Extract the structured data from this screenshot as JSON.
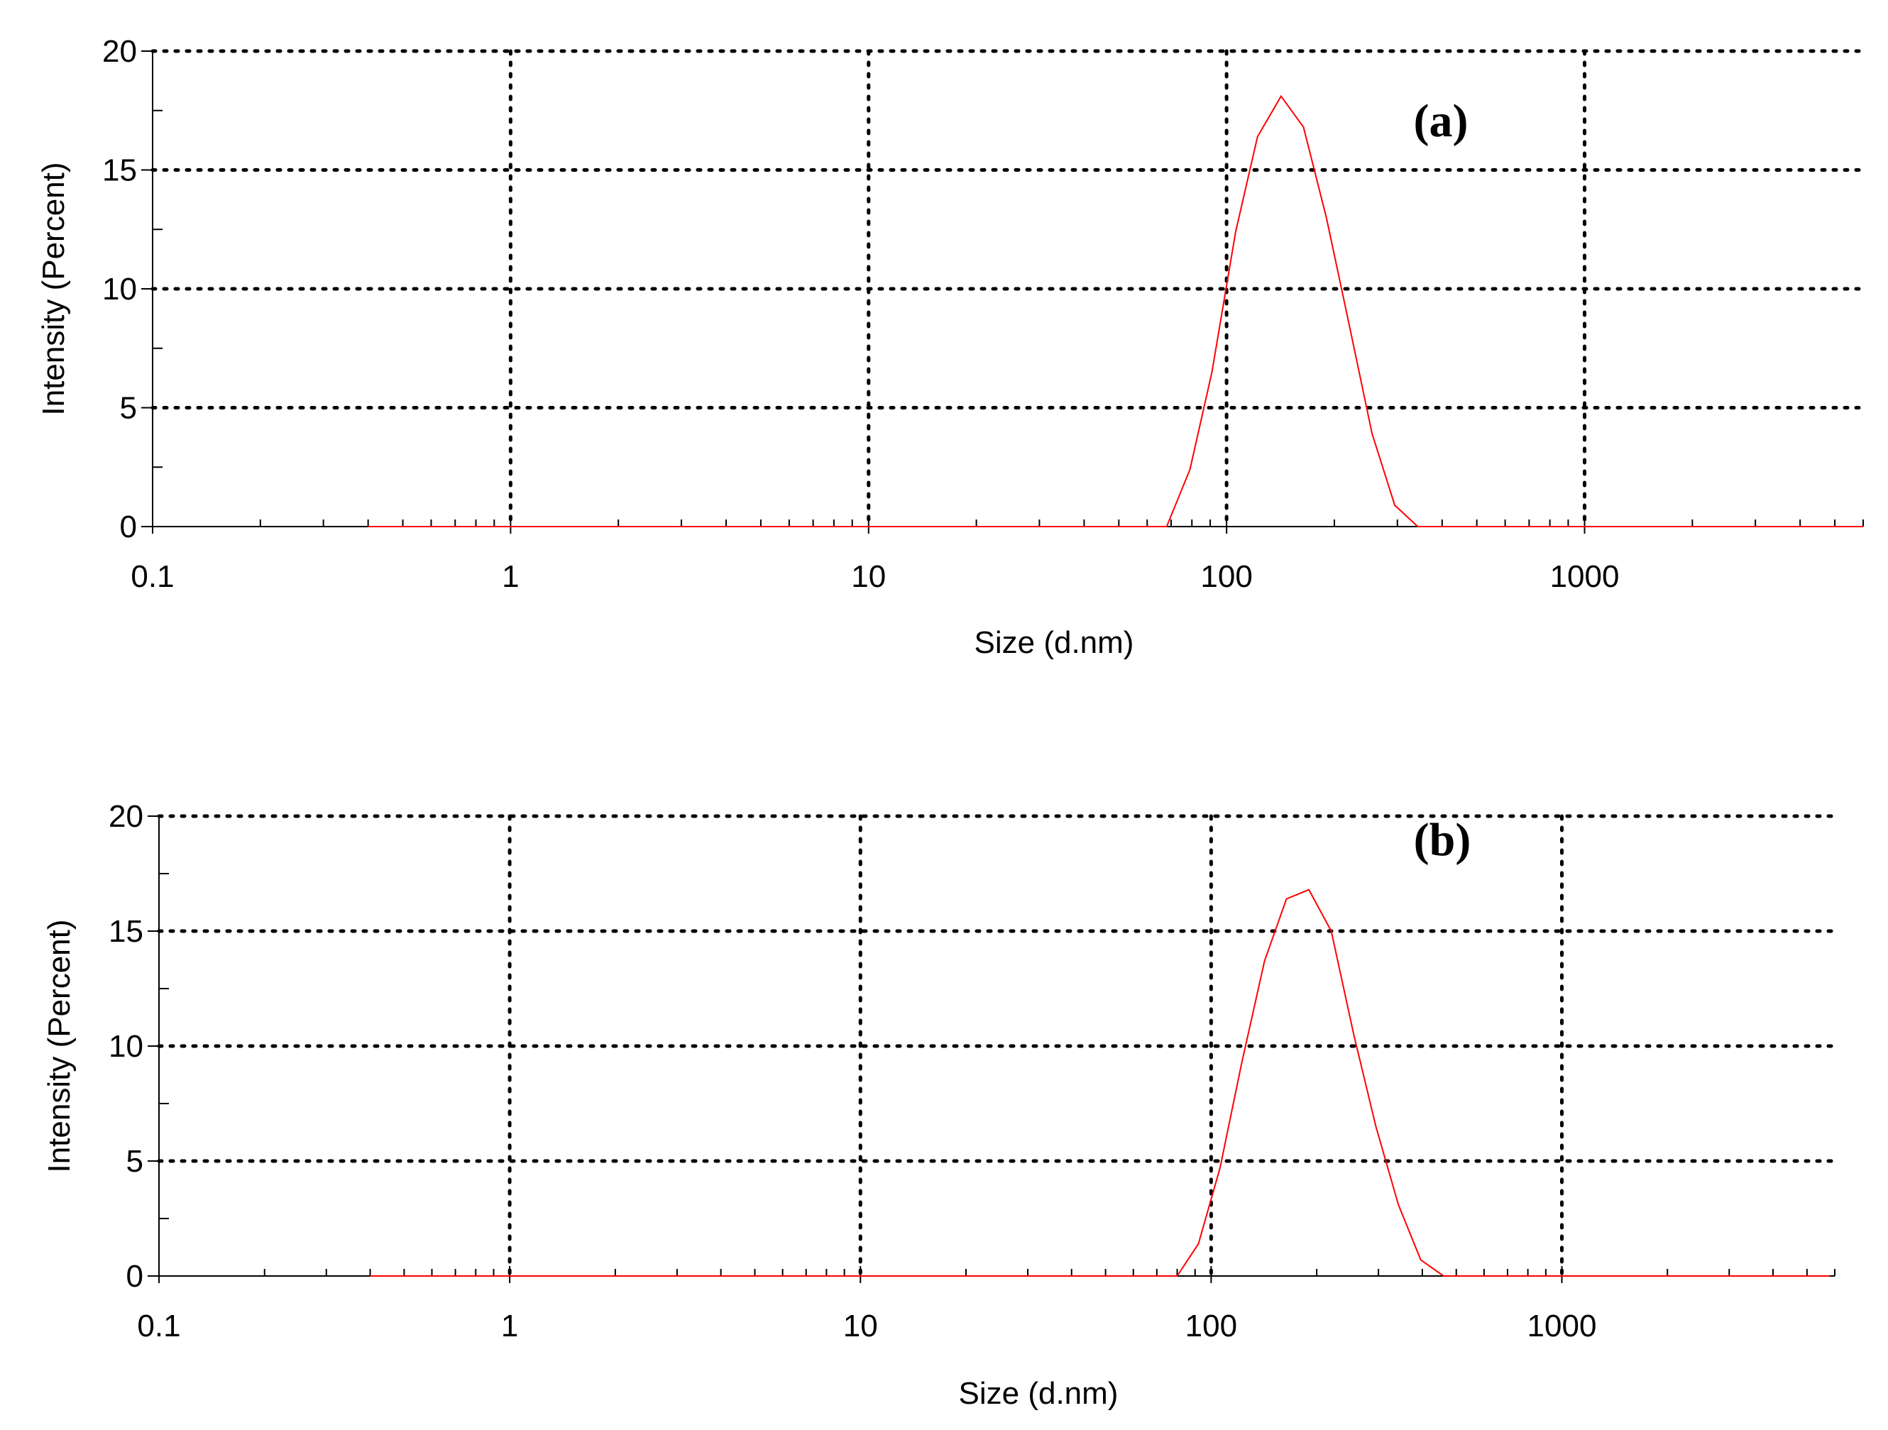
{
  "chart_data": [
    {
      "type": "line",
      "panel_label": "(a)",
      "xlabel": "Size (d.nm)",
      "ylabel": "Intensity (Percent)",
      "xscale": "log",
      "xlim": [
        0.1,
        6000
      ],
      "ylim": [
        0,
        20
      ],
      "xticks": [
        0.1,
        1,
        10,
        100,
        1000
      ],
      "xtick_labels": [
        "0.1",
        "1",
        "10",
        "100",
        "1000"
      ],
      "yticks": [
        0,
        5,
        10,
        15,
        20
      ],
      "ytick_labels": [
        "0",
        "5",
        "10",
        "15",
        "20"
      ],
      "grid": true,
      "series_color": "#ff0000",
      "x": [
        0.4,
        1,
        10,
        68,
        79,
        91,
        106,
        122,
        142,
        164,
        190,
        220,
        255,
        295,
        342,
        400,
        1000,
        6000
      ],
      "y": [
        0,
        0,
        0,
        0,
        2.4,
        6.5,
        12.4,
        16.4,
        18.1,
        16.8,
        13.0,
        8.5,
        3.9,
        0.9,
        0,
        0,
        0,
        0
      ]
    },
    {
      "type": "line",
      "panel_label": "(b)",
      "xlabel": "Size (d.nm)",
      "ylabel": "Intensity (Percent)",
      "xscale": "log",
      "xlim": [
        0.1,
        6000
      ],
      "ylim": [
        0,
        20
      ],
      "xticks": [
        0.1,
        1,
        10,
        100,
        1000
      ],
      "xtick_labels": [
        "0.1",
        "1",
        "10",
        "100",
        "1000"
      ],
      "yticks": [
        0,
        5,
        10,
        15,
        20
      ],
      "ytick_labels": [
        "0",
        "5",
        "10",
        "15",
        "20"
      ],
      "grid": true,
      "series_color": "#ff0000",
      "x": [
        0.4,
        1,
        10,
        80,
        92,
        106,
        122,
        142,
        164,
        190,
        220,
        255,
        295,
        342,
        396,
        460,
        1000,
        5800
      ],
      "y": [
        0,
        0,
        0,
        0,
        1.4,
        4.7,
        9.2,
        13.7,
        16.4,
        16.8,
        15.0,
        10.5,
        6.5,
        3.1,
        0.7,
        0,
        0,
        0
      ]
    }
  ]
}
